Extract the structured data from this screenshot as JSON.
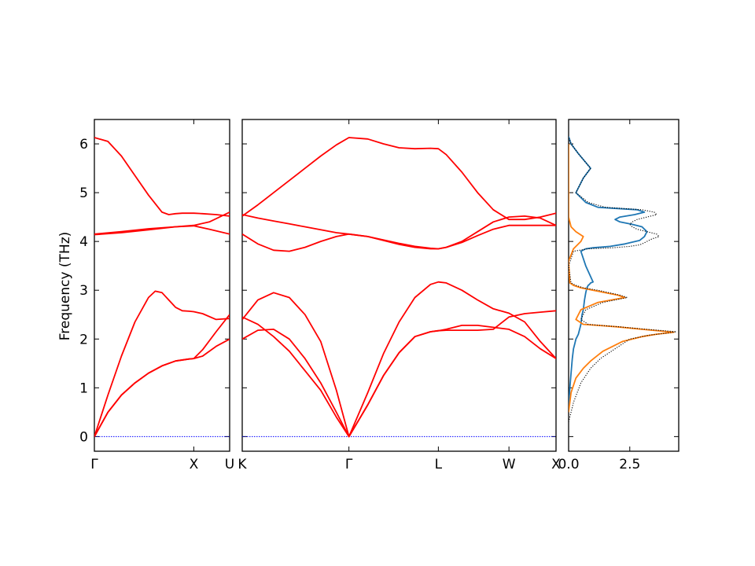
{
  "chart_data": [
    {
      "type": "line",
      "title": "",
      "ylabel": "Frequency (THz)",
      "ylim": [
        -0.3,
        6.5
      ],
      "yticks": [
        0,
        1,
        2,
        3,
        4,
        5,
        6
      ],
      "ytick_labels": [
        "0",
        "1",
        "2",
        "3",
        "4",
        "5",
        "6"
      ],
      "xlim": [
        0,
        1
      ],
      "xticks": [
        0,
        0.735,
        1
      ],
      "xtick_labels": [
        "Γ",
        "X",
        "U"
      ],
      "line_color": "#ff0000",
      "zero_line_color": "#0000ff",
      "series": [
        {
          "x": [
            0,
            0.1,
            0.2,
            0.3,
            0.4,
            0.5,
            0.55,
            0.6,
            0.65,
            0.7,
            0.735,
            0.8,
            0.9,
            1.0
          ],
          "y": [
            6.13,
            6.05,
            5.75,
            5.35,
            4.95,
            4.6,
            4.55,
            4.57,
            4.58,
            4.58,
            4.58,
            4.57,
            4.55,
            4.52
          ]
        },
        {
          "x": [
            0,
            0.2,
            0.4,
            0.6,
            0.735,
            0.85,
            1.0
          ],
          "y": [
            4.15,
            4.2,
            4.26,
            4.3,
            4.33,
            4.4,
            4.6
          ]
        },
        {
          "x": [
            0,
            0.2,
            0.4,
            0.6,
            0.735,
            0.85,
            1.0
          ],
          "y": [
            4.14,
            4.18,
            4.24,
            4.3,
            4.32,
            4.25,
            4.15
          ]
        },
        {
          "x": [
            0,
            0.1,
            0.2,
            0.3,
            0.4,
            0.45,
            0.5,
            0.55,
            0.6,
            0.65,
            0.7,
            0.735,
            0.8,
            0.9,
            1.0
          ],
          "y": [
            0,
            0.85,
            1.65,
            2.35,
            2.85,
            2.98,
            2.95,
            2.8,
            2.65,
            2.58,
            2.57,
            2.56,
            2.52,
            2.4,
            2.42
          ]
        },
        {
          "x": [
            0,
            0.1,
            0.2,
            0.3,
            0.4,
            0.5,
            0.6,
            0.7,
            0.735,
            0.8,
            0.9,
            1.0
          ],
          "y": [
            0,
            0.5,
            0.85,
            1.1,
            1.3,
            1.45,
            1.55,
            1.59,
            1.6,
            1.65,
            1.85,
            2.0
          ]
        },
        {
          "x": [
            0,
            0.1,
            0.2,
            0.3,
            0.4,
            0.5,
            0.6,
            0.7,
            0.735,
            0.8,
            0.9,
            1.0
          ],
          "y": [
            0,
            0.5,
            0.85,
            1.1,
            1.3,
            1.45,
            1.55,
            1.59,
            1.6,
            1.78,
            2.15,
            2.5
          ]
        }
      ]
    },
    {
      "type": "line",
      "title": "",
      "ylim": [
        -0.3,
        6.5
      ],
      "xlim": [
        0,
        1
      ],
      "xticks": [
        0,
        0.34,
        0.625,
        0.85,
        1
      ],
      "xtick_labels": [
        "K",
        "Γ",
        "L",
        "W",
        "X"
      ],
      "line_color": "#ff0000",
      "zero_line_color": "#0000ff",
      "series": [
        {
          "x": [
            0,
            0.05,
            0.1,
            0.15,
            0.2,
            0.25,
            0.3,
            0.34,
            0.4,
            0.45,
            0.5,
            0.55,
            0.6,
            0.625,
            0.65,
            0.7,
            0.75,
            0.8,
            0.85,
            0.9,
            0.95,
            1.0
          ],
          "y": [
            4.52,
            4.75,
            5.0,
            5.25,
            5.5,
            5.75,
            5.98,
            6.13,
            6.1,
            6.0,
            5.92,
            5.9,
            5.91,
            5.9,
            5.78,
            5.42,
            5.0,
            4.65,
            4.45,
            4.45,
            4.5,
            4.58
          ]
        },
        {
          "x": [
            0,
            0.05,
            0.1,
            0.15,
            0.2,
            0.25,
            0.3,
            0.34,
            0.4,
            0.45,
            0.5,
            0.55,
            0.6,
            0.625,
            0.65,
            0.7,
            0.75,
            0.8,
            0.85,
            0.9,
            0.95,
            1.0
          ],
          "y": [
            4.55,
            4.48,
            4.42,
            4.36,
            4.3,
            4.24,
            4.18,
            4.15,
            4.1,
            4.03,
            3.96,
            3.9,
            3.86,
            3.85,
            3.88,
            4.0,
            4.2,
            4.4,
            4.5,
            4.52,
            4.48,
            4.33
          ]
        },
        {
          "x": [
            0,
            0.05,
            0.1,
            0.15,
            0.2,
            0.25,
            0.3,
            0.34,
            0.4,
            0.45,
            0.5,
            0.55,
            0.6,
            0.625,
            0.65,
            0.7,
            0.75,
            0.8,
            0.85,
            0.9,
            0.95,
            1.0
          ],
          "y": [
            4.15,
            3.95,
            3.82,
            3.8,
            3.88,
            4.0,
            4.1,
            4.15,
            4.1,
            4.02,
            3.94,
            3.88,
            3.85,
            3.85,
            3.88,
            3.98,
            4.12,
            4.25,
            4.33,
            4.33,
            4.33,
            4.33
          ]
        },
        {
          "x": [
            0,
            0.05,
            0.1,
            0.15,
            0.2,
            0.25,
            0.3,
            0.34,
            0.4,
            0.45,
            0.5,
            0.55,
            0.6,
            0.625,
            0.65,
            0.7,
            0.75,
            0.8,
            0.85,
            0.9,
            0.95,
            1.0
          ],
          "y": [
            2.45,
            2.3,
            2.05,
            1.75,
            1.35,
            0.95,
            0.4,
            0,
            0.9,
            1.7,
            2.35,
            2.85,
            3.12,
            3.17,
            3.15,
            3.0,
            2.8,
            2.62,
            2.53,
            2.35,
            1.95,
            1.6
          ]
        },
        {
          "x": [
            0,
            0.05,
            0.1,
            0.15,
            0.2,
            0.25,
            0.3,
            0.34,
            0.4,
            0.45,
            0.5,
            0.55,
            0.6,
            0.625,
            0.65,
            0.7,
            0.75,
            0.8,
            0.85,
            0.9,
            0.95,
            1.0
          ],
          "y": [
            2.4,
            2.8,
            2.95,
            2.85,
            2.5,
            1.95,
            0.95,
            0,
            0.65,
            1.25,
            1.72,
            2.05,
            2.15,
            2.17,
            2.18,
            2.18,
            2.18,
            2.2,
            2.45,
            2.52,
            2.55,
            2.58
          ]
        },
        {
          "x": [
            0,
            0.05,
            0.1,
            0.15,
            0.2,
            0.25,
            0.3,
            0.34,
            0.4,
            0.45,
            0.5,
            0.55,
            0.6,
            0.625,
            0.65,
            0.7,
            0.75,
            0.8,
            0.85,
            0.9,
            0.95,
            1.0
          ],
          "y": [
            2.0,
            2.18,
            2.2,
            2.0,
            1.6,
            1.1,
            0.5,
            0,
            0.65,
            1.25,
            1.72,
            2.05,
            2.15,
            2.17,
            2.2,
            2.28,
            2.28,
            2.24,
            2.2,
            2.05,
            1.8,
            1.6
          ]
        }
      ]
    },
    {
      "type": "line",
      "title": "",
      "ylim": [
        -0.3,
        6.5
      ],
      "xlim": [
        0,
        4.5
      ],
      "xticks": [
        0,
        2.5
      ],
      "xtick_labels": [
        "0.0",
        "2.5"
      ],
      "series": [
        {
          "style": "solid",
          "color": "#1f77b4",
          "x": [
            0,
            0.05,
            0.1,
            0.15,
            0.2,
            0.25,
            0.3,
            0.35,
            0.4,
            0.45,
            0.5,
            0.55,
            0.6,
            0.65,
            0.7,
            0.75,
            0.8,
            0.85,
            0.9,
            0.95,
            1.0,
            0.7,
            0.5,
            0.7,
            1.0,
            1.7,
            2.3,
            2.9,
            3.1,
            3.2,
            3.0,
            2.6,
            2.1,
            1.9,
            2.1,
            2.7,
            3.1,
            2.8,
            1.2,
            0.7,
            0.3,
            0.6,
            0.9,
            0.4,
            0.1,
            0
          ],
          "y": [
            0.6,
            1.0,
            1.3,
            1.6,
            1.8,
            1.9,
            2.0,
            2.05,
            2.1,
            2.2,
            2.3,
            2.5,
            2.6,
            2.8,
            2.95,
            3.05,
            3.1,
            3.12,
            3.15,
            3.16,
            3.17,
            3.5,
            3.8,
            3.85,
            3.87,
            3.9,
            3.95,
            4.02,
            4.1,
            4.2,
            4.3,
            4.35,
            4.4,
            4.45,
            4.5,
            4.55,
            4.6,
            4.65,
            4.7,
            4.8,
            5.0,
            5.3,
            5.5,
            5.8,
            6.0,
            6.15
          ]
        },
        {
          "style": "solid",
          "color": "#ff7f0e",
          "x": [
            0,
            0.1,
            0.3,
            0.6,
            0.9,
            1.4,
            2.2,
            3.0,
            3.6,
            4.3,
            3.0,
            2.0,
            1.2,
            0.6,
            0.3,
            0.5,
            1.2,
            2.3,
            2.0,
            1.0,
            0.5,
            0.2,
            0.05,
            0,
            0.2,
            0.5,
            0.6,
            0.3,
            0.1,
            0,
            0
          ],
          "y": [
            0.5,
            0.9,
            1.2,
            1.4,
            1.55,
            1.75,
            1.95,
            2.05,
            2.1,
            2.14,
            2.2,
            2.25,
            2.28,
            2.3,
            2.4,
            2.6,
            2.75,
            2.85,
            2.9,
            3.0,
            3.05,
            3.1,
            3.15,
            3.6,
            3.85,
            4.0,
            4.1,
            4.2,
            4.3,
            4.5,
            6.0
          ]
        },
        {
          "style": "dotted",
          "color": "#000000",
          "x": [
            0,
            0.2,
            0.5,
            0.9,
            1.3,
            1.9,
            2.5,
            3.3,
            4.0,
            4.4,
            3.2,
            2.1,
            1.3,
            0.8,
            0.5,
            0.7,
            1.4,
            2.4,
            2.1,
            1.2,
            0.6,
            0.3,
            0.1,
            0,
            0.2,
            0.8,
            1.8,
            2.5,
            2.9,
            3.0,
            3.2,
            3.4,
            3.7,
            3.6,
            3.2,
            2.8,
            2.6,
            2.5,
            2.6,
            2.8,
            3.2,
            3.6,
            3.5,
            3.0,
            1.5,
            0.8,
            0.3,
            0.6,
            0.9,
            0.4,
            0.1,
            0
          ],
          "y": [
            0.3,
            0.7,
            1.1,
            1.4,
            1.6,
            1.8,
            2.0,
            2.08,
            2.12,
            2.15,
            2.2,
            2.25,
            2.28,
            2.3,
            2.4,
            2.6,
            2.75,
            2.85,
            2.9,
            3.0,
            3.05,
            3.1,
            3.15,
            3.5,
            3.8,
            3.85,
            3.87,
            3.9,
            3.93,
            3.95,
            4.0,
            4.05,
            4.1,
            4.15,
            4.2,
            4.25,
            4.3,
            4.35,
            4.4,
            4.45,
            4.5,
            4.55,
            4.6,
            4.65,
            4.7,
            4.8,
            5.0,
            5.3,
            5.5,
            5.8,
            6.0,
            6.15
          ]
        }
      ]
    }
  ]
}
